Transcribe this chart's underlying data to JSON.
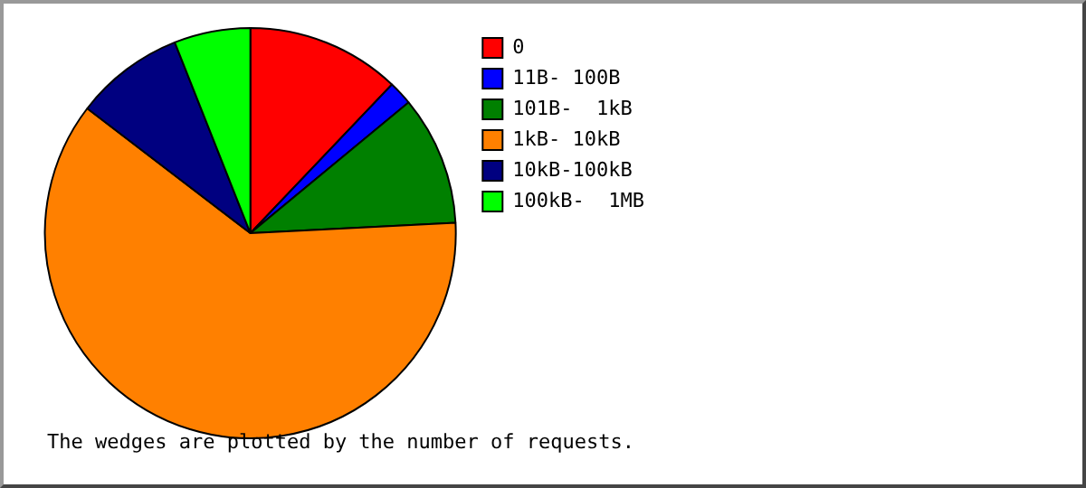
{
  "chart_data": {
    "type": "pie",
    "categories": [
      "0",
      "11B- 100B",
      "101B-  1kB",
      "1kB- 10kB",
      "10kB-100kB",
      "100kB-  1MB"
    ],
    "values": [
      12.1,
      1.9,
      10.2,
      61.2,
      8.6,
      6.0
    ],
    "colors": [
      "#ff0000",
      "#0000ff",
      "#008000",
      "#ff8000",
      "#000080",
      "#00ff00"
    ],
    "legend": "right",
    "annotations": [
      "The wedges are plotted by the number of requests."
    ]
  }
}
